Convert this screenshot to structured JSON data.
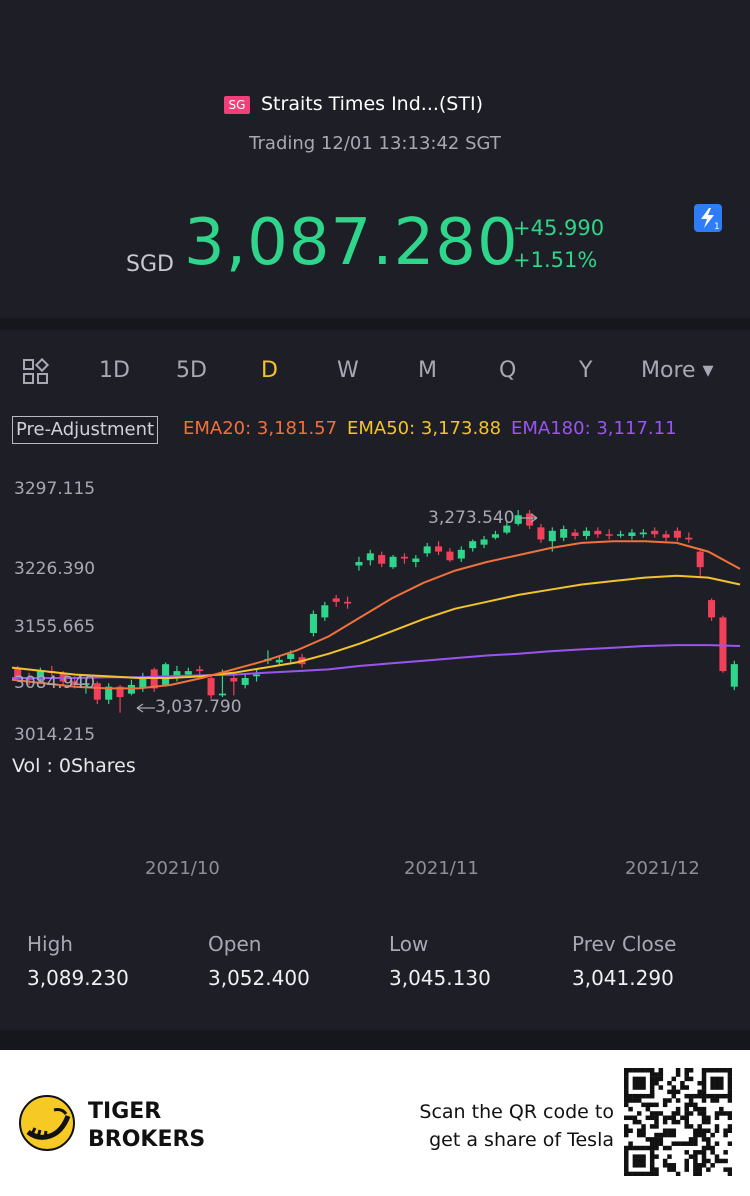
{
  "header": {
    "market_badge": "SG",
    "title": "Straits Times Ind...(STI)",
    "status": "Trading 12/01 13:13:42 SGT",
    "currency": "SGD",
    "price": "3,087.280",
    "change": "+45.990",
    "change_pct": "+1.51%",
    "accent_color": "#2fd58a"
  },
  "periods": [
    "1D",
    "5D",
    "D",
    "W",
    "M",
    "Q",
    "Y",
    "More ▾"
  ],
  "active_period": "D",
  "legend": {
    "adjustment": "Pre-Adjustment",
    "ema20": "EMA20: 3,181.57",
    "ema50": "EMA50: 3,173.88",
    "ema180": "EMA180: 3,117.11",
    "ema20_color": "#f0713a",
    "ema50_color": "#f3c32b",
    "ema180_color": "#9a55f0"
  },
  "chart_data": {
    "type": "candlestick",
    "y_ticks": [
      "3297.115",
      "3226.390",
      "3155.665",
      "3084.940",
      "3014.215"
    ],
    "x_ticks": [
      "2021/10",
      "2021/11",
      "2021/12"
    ],
    "annotations": {
      "high_label": "3,273.540",
      "low_label": "3,037.790"
    },
    "ylim": [
      3014.215,
      3297.115
    ],
    "up_color": "#2fd58a",
    "down_color": "#f0405a",
    "candles": [
      {
        "o": 3091,
        "c": 3080,
        "h": 3094,
        "l": 3076
      },
      {
        "o": 3080,
        "c": 3078,
        "h": 3086,
        "l": 3072
      },
      {
        "o": 3078,
        "c": 3088,
        "h": 3092,
        "l": 3074
      },
      {
        "o": 3088,
        "c": 3086,
        "h": 3094,
        "l": 3082
      },
      {
        "o": 3086,
        "c": 3076,
        "h": 3088,
        "l": 3072
      },
      {
        "o": 3076,
        "c": 3072,
        "h": 3082,
        "l": 3068
      },
      {
        "o": 3072,
        "c": 3074,
        "h": 3080,
        "l": 3062
      },
      {
        "o": 3074,
        "c": 3055,
        "h": 3076,
        "l": 3050
      },
      {
        "o": 3055,
        "c": 3070,
        "h": 3074,
        "l": 3050
      },
      {
        "o": 3070,
        "c": 3058,
        "h": 3072,
        "l": 3040
      },
      {
        "o": 3062,
        "c": 3072,
        "h": 3078,
        "l": 3060
      },
      {
        "o": 3068,
        "c": 3082,
        "h": 3086,
        "l": 3064
      },
      {
        "o": 3090,
        "c": 3068,
        "h": 3092,
        "l": 3064
      },
      {
        "o": 3072,
        "c": 3096,
        "h": 3098,
        "l": 3070
      },
      {
        "o": 3082,
        "c": 3088,
        "h": 3094,
        "l": 3076
      },
      {
        "o": 3084,
        "c": 3088,
        "h": 3092,
        "l": 3080
      },
      {
        "o": 3090,
        "c": 3088,
        "h": 3094,
        "l": 3084
      },
      {
        "o": 3080,
        "c": 3060,
        "h": 3084,
        "l": 3056
      },
      {
        "o": 3060,
        "c": 3062,
        "h": 3090,
        "l": 3058
      },
      {
        "o": 3080,
        "c": 3076,
        "h": 3084,
        "l": 3060
      },
      {
        "o": 3072,
        "c": 3080,
        "h": 3084,
        "l": 3068
      },
      {
        "o": 3082,
        "c": 3084,
        "h": 3090,
        "l": 3076
      },
      {
        "o": 3100,
        "c": 3102,
        "h": 3112,
        "l": 3096
      },
      {
        "o": 3098,
        "c": 3101,
        "h": 3106,
        "l": 3094
      },
      {
        "o": 3102,
        "c": 3108,
        "h": 3112,
        "l": 3098
      },
      {
        "o": 3104,
        "c": 3096,
        "h": 3108,
        "l": 3092
      },
      {
        "o": 3132,
        "c": 3154,
        "h": 3158,
        "l": 3128
      },
      {
        "o": 3150,
        "c": 3164,
        "h": 3168,
        "l": 3146
      },
      {
        "o": 3172,
        "c": 3168,
        "h": 3176,
        "l": 3162
      },
      {
        "o": 3168,
        "c": 3166,
        "h": 3174,
        "l": 3160
      },
      {
        "o": 3210,
        "c": 3214,
        "h": 3220,
        "l": 3204
      },
      {
        "o": 3216,
        "c": 3224,
        "h": 3228,
        "l": 3210
      },
      {
        "o": 3222,
        "c": 3212,
        "h": 3226,
        "l": 3208
      },
      {
        "o": 3208,
        "c": 3220,
        "h": 3222,
        "l": 3206
      },
      {
        "o": 3220,
        "c": 3218,
        "h": 3224,
        "l": 3212
      },
      {
        "o": 3214,
        "c": 3218,
        "h": 3222,
        "l": 3208
      },
      {
        "o": 3224,
        "c": 3232,
        "h": 3236,
        "l": 3220
      },
      {
        "o": 3232,
        "c": 3226,
        "h": 3238,
        "l": 3222
      },
      {
        "o": 3226,
        "c": 3216,
        "h": 3230,
        "l": 3214
      },
      {
        "o": 3218,
        "c": 3228,
        "h": 3232,
        "l": 3214
      },
      {
        "o": 3230,
        "c": 3238,
        "h": 3240,
        "l": 3226
      },
      {
        "o": 3234,
        "c": 3240,
        "h": 3244,
        "l": 3230
      },
      {
        "o": 3242,
        "c": 3246,
        "h": 3250,
        "l": 3240
      },
      {
        "o": 3248,
        "c": 3256,
        "h": 3262,
        "l": 3246
      },
      {
        "o": 3258,
        "c": 3268,
        "h": 3274,
        "l": 3256
      },
      {
        "o": 3270,
        "c": 3256,
        "h": 3274,
        "l": 3252
      },
      {
        "o": 3254,
        "c": 3240,
        "h": 3258,
        "l": 3236
      },
      {
        "o": 3238,
        "c": 3250,
        "h": 3254,
        "l": 3226
      },
      {
        "o": 3242,
        "c": 3252,
        "h": 3256,
        "l": 3238
      },
      {
        "o": 3248,
        "c": 3244,
        "h": 3252,
        "l": 3240
      },
      {
        "o": 3244,
        "c": 3250,
        "h": 3254,
        "l": 3240
      },
      {
        "o": 3250,
        "c": 3246,
        "h": 3254,
        "l": 3242
      },
      {
        "o": 3246,
        "c": 3245,
        "h": 3252,
        "l": 3240
      },
      {
        "o": 3246,
        "c": 3246,
        "h": 3250,
        "l": 3242
      },
      {
        "o": 3244,
        "c": 3248,
        "h": 3252,
        "l": 3240
      },
      {
        "o": 3246,
        "c": 3248,
        "h": 3252,
        "l": 3242
      },
      {
        "o": 3250,
        "c": 3246,
        "h": 3254,
        "l": 3242
      },
      {
        "o": 3246,
        "c": 3242,
        "h": 3250,
        "l": 3238
      },
      {
        "o": 3250,
        "c": 3242,
        "h": 3254,
        "l": 3238
      },
      {
        "o": 3242,
        "c": 3240,
        "h": 3248,
        "l": 3236
      },
      {
        "o": 3226,
        "c": 3208,
        "h": 3230,
        "l": 3198
      },
      {
        "o": 3170,
        "c": 3150,
        "h": 3172,
        "l": 3146
      },
      {
        "o": 3150,
        "c": 3088,
        "h": 3152,
        "l": 3086
      },
      {
        "o": 3070,
        "c": 3096,
        "h": 3100,
        "l": 3066
      }
    ],
    "ema20": [
      3078,
      3074,
      3070,
      3068,
      3068,
      3072,
      3080,
      3090,
      3100,
      3112,
      3128,
      3150,
      3172,
      3190,
      3204,
      3214,
      3222,
      3230,
      3236,
      3238,
      3238,
      3236,
      3226,
      3206
    ],
    "ema50": [
      3092,
      3088,
      3084,
      3082,
      3080,
      3080,
      3082,
      3086,
      3092,
      3098,
      3108,
      3120,
      3134,
      3148,
      3160,
      3168,
      3176,
      3182,
      3188,
      3192,
      3196,
      3198,
      3196,
      3188
    ],
    "ema180": [
      3080,
      3080,
      3080,
      3081,
      3081,
      3082,
      3083,
      3084,
      3086,
      3088,
      3090,
      3094,
      3097,
      3100,
      3103,
      3106,
      3108,
      3111,
      3113,
      3115,
      3117,
      3118,
      3118,
      3117
    ]
  },
  "volume": "Vol  : 0Shares",
  "stats": [
    {
      "label": "High",
      "value": "3,089.230"
    },
    {
      "label": "Open",
      "value": "3,052.400"
    },
    {
      "label": "Low",
      "value": "3,045.130"
    },
    {
      "label": "Prev Close",
      "value": "3,041.290"
    }
  ],
  "footer": {
    "brand_line1": "TIGER",
    "brand_line2": "BROKERS",
    "promo_line1": "Scan the QR code to",
    "promo_line2": "get a share of Tesla"
  }
}
